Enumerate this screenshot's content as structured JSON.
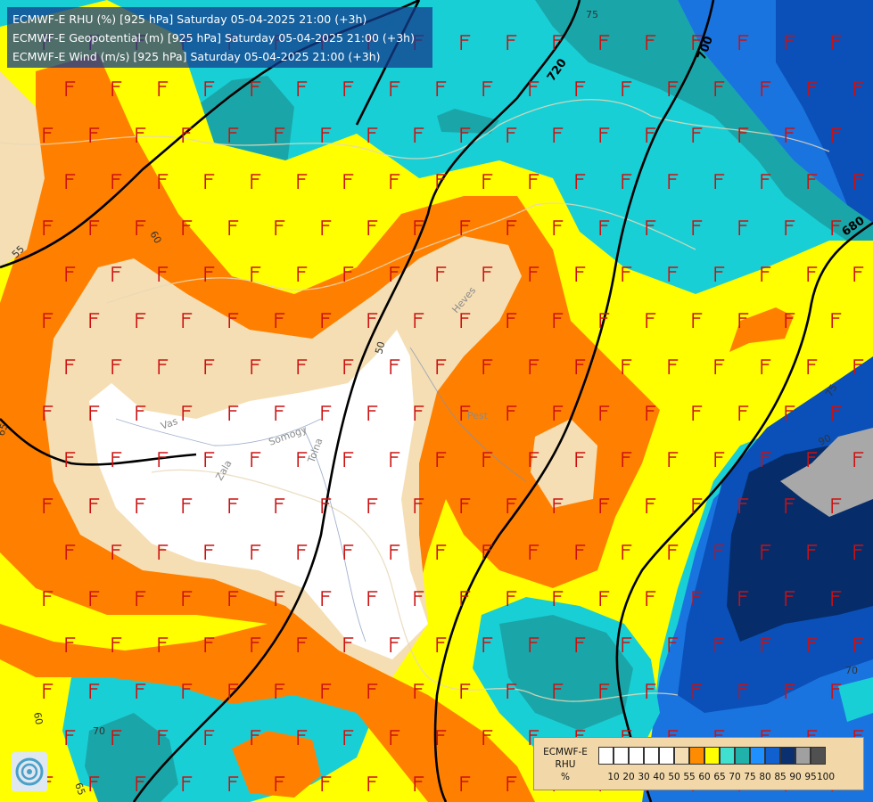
{
  "title_lines": [
    "ECMWF-E RHU (%) [925 hPa] Saturday 05-04-2025 21:00 (+3h)",
    "ECMWF-E Geopotential (m) [925 hPa] Saturday 05-04-2025 21:00 (+3h)",
    "ECMWF-E Wind (m/s) [925 hPa] Saturday 05-04-2025 21:00 (+3h)"
  ],
  "legend": {
    "model": "ECMWF-E",
    "variable": "RHU",
    "unit": "%",
    "levels": [
      "10",
      "20",
      "30",
      "40",
      "50",
      "55",
      "60",
      "65",
      "70",
      "75",
      "80",
      "85",
      "90",
      "95",
      "100"
    ],
    "colors": [
      "#ffffff",
      "#ffffff",
      "#ffffff",
      "#ffffff",
      "#ffffff",
      "#f5deb3",
      "#ff8c00",
      "#ffff00",
      "#40e0d0",
      "#20b2aa",
      "#1e90ff",
      "#1060d0",
      "#0a3070",
      "#a0a0a0",
      "#505050"
    ]
  },
  "geopotential_labels": [
    "720",
    "700",
    "680"
  ],
  "rhu_labels": [
    "75",
    "60",
    "55",
    "50",
    "65",
    "60",
    "70",
    "65",
    "75",
    "90",
    "70"
  ],
  "place_labels": [
    "Pest",
    "Heves",
    "Vas",
    "Somogy",
    "Zala",
    "Tolna"
  ],
  "palette": {
    "white": "#ffffff",
    "wheat": "#f5deb3",
    "orange": "#ff8000",
    "yellow": "#ffff00",
    "turquoise": "#19cfd6",
    "teal": "#1aa6a8",
    "blue": "#1a74e0",
    "midblue": "#0a50b8",
    "navy": "#062c6a",
    "grey": "#a8a8a8",
    "barb_red": "#cc1010"
  }
}
